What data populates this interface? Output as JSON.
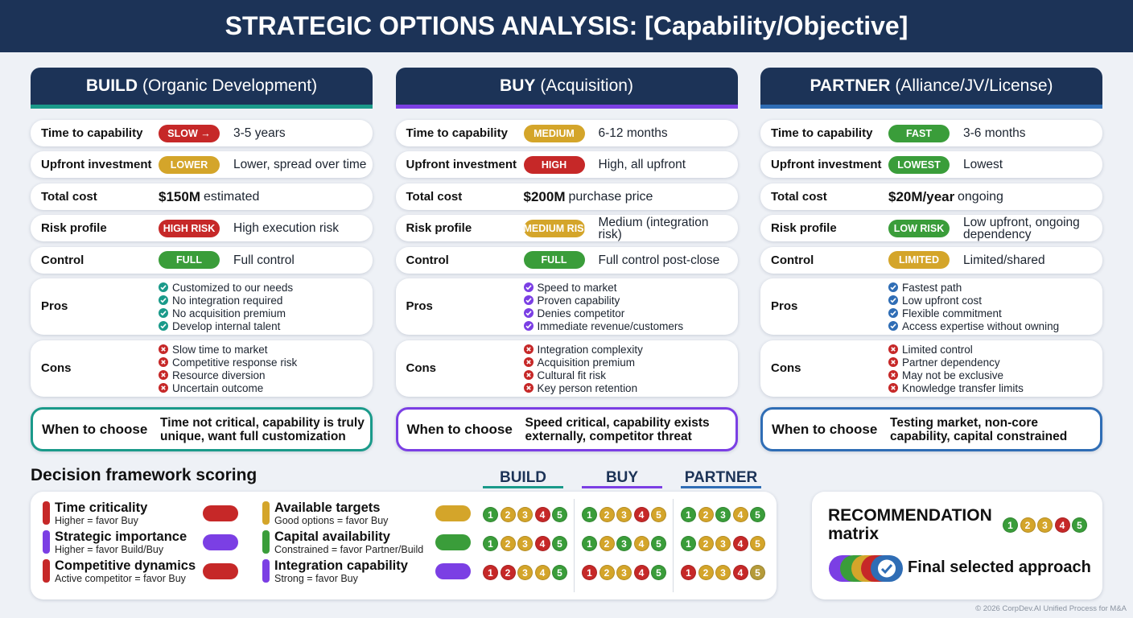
{
  "title": "STRATEGIC OPTIONS ANALYSIS: [Capability/Objective]",
  "options": [
    {
      "name": "BUILD",
      "subtitle": "(Organic Development)",
      "color": "teal",
      "rows": [
        {
          "label": "Time to capability",
          "badge": "SLOW →",
          "badge_color": "red",
          "text": "3-5 years"
        },
        {
          "label": "Upfront investment",
          "badge": "LOWER",
          "badge_color": "yellow",
          "text": "Lower, spread over time"
        },
        {
          "label": "Total cost",
          "amount": "$150M",
          "text": "estimated"
        },
        {
          "label": "Risk profile",
          "badge": "HIGH RISK",
          "badge_color": "red",
          "text": "High execution risk"
        },
        {
          "label": "Control",
          "badge": "FULL",
          "badge_color": "green",
          "text": "Full control"
        }
      ],
      "pros_label": "Pros",
      "pros": [
        "Customized to our needs",
        "No integration required",
        "No acquisition premium",
        "Develop internal talent"
      ],
      "cons_label": "Cons",
      "cons": [
        "Slow time to market",
        "Competitive response risk",
        "Resource diversion",
        "Uncertain outcome"
      ],
      "when_label": "When to choose",
      "when": "Time not critical, capability is truly unique, want full customization"
    },
    {
      "name": "BUY",
      "subtitle": "(Acquisition)",
      "color": "purple",
      "rows": [
        {
          "label": "Time to capability",
          "badge": "MEDIUM",
          "badge_color": "yellow",
          "text": "6-12 months"
        },
        {
          "label": "Upfront investment",
          "badge": "HIGH",
          "badge_color": "red",
          "text": "High, all upfront"
        },
        {
          "label": "Total cost",
          "amount": "$200M",
          "text": "purchase price"
        },
        {
          "label": "Risk profile",
          "badge": "MEDIUM RISK",
          "badge_color": "yellow",
          "text": "Medium (integration risk)"
        },
        {
          "label": "Control",
          "badge": "FULL",
          "badge_color": "green",
          "text": "Full control post-close"
        }
      ],
      "pros_label": "Pros",
      "pros": [
        "Speed to market",
        "Proven capability",
        "Denies competitor",
        "Immediate revenue/customers"
      ],
      "cons_label": "Cons",
      "cons": [
        "Integration complexity",
        "Acquisition premium",
        "Cultural fit risk",
        "Key person retention"
      ],
      "when_label": "When to choose",
      "when": "Speed critical, capability exists externally, competitor threat"
    },
    {
      "name": "PARTNER",
      "subtitle": "(Alliance/JV/License)",
      "color": "blue",
      "rows": [
        {
          "label": "Time to capability",
          "badge": "FAST",
          "badge_color": "green",
          "text": "3-6 months"
        },
        {
          "label": "Upfront investment",
          "badge": "LOWEST",
          "badge_color": "green",
          "text": "Lowest"
        },
        {
          "label": "Total cost",
          "amount": "$20M/year",
          "text": "ongoing"
        },
        {
          "label": "Risk profile",
          "badge": "LOW RISK",
          "badge_color": "green",
          "text": "Low upfront, ongoing dependency"
        },
        {
          "label": "Control",
          "badge": "LIMITED",
          "badge_color": "yellow",
          "text": "Limited/shared"
        }
      ],
      "pros_label": "Pros",
      "pros": [
        "Fastest path",
        "Low upfront cost",
        "Flexible commitment",
        "Access expertise without owning"
      ],
      "cons_label": "Cons",
      "cons": [
        "Limited control",
        "Partner dependency",
        "May not be exclusive",
        "Knowledge transfer limits"
      ],
      "when_label": "When to choose",
      "when": "Testing market, non-core capability, capital constrained"
    }
  ],
  "scoring": {
    "title": "Decision framework scoring",
    "columns": [
      {
        "name": "BUILD",
        "color": "teal"
      },
      {
        "name": "BUY",
        "color": "purple"
      },
      {
        "name": "PARTNER",
        "color": "blue"
      }
    ],
    "criteria": [
      {
        "name": "Time criticality",
        "note": "Higher = favor Buy",
        "color": "red"
      },
      {
        "name": "Strategic importance",
        "note": "Higher = favor Build/Buy",
        "color": "purple"
      },
      {
        "name": "Competitive dynamics",
        "note": "Active competitor = favor Buy",
        "color": "red"
      },
      {
        "name": "Available targets",
        "note": "Good options = favor Buy",
        "color": "yellow"
      },
      {
        "name": "Capital availability",
        "note": "Constrained = favor Partner/Build",
        "color": "green"
      },
      {
        "name": "Integration capability",
        "note": "Strong = favor Buy",
        "color": "purple"
      }
    ],
    "scale": [
      1,
      2,
      3,
      4,
      5
    ],
    "grid": [
      [
        [
          "green",
          "yellow",
          "yellow",
          "red",
          "green"
        ],
        [
          "green",
          "yellow",
          "yellow",
          "red",
          "yellow"
        ],
        [
          "green",
          "yellow",
          "green",
          "yellow",
          "green"
        ]
      ],
      [
        [
          "green",
          "yellow",
          "yellow",
          "red",
          "green"
        ],
        [
          "green",
          "yellow",
          "green",
          "yellow",
          "green"
        ],
        [
          "green",
          "yellow",
          "yellow",
          "red",
          "yellow"
        ]
      ],
      [
        [
          "red",
          "red",
          "yellow",
          "yellow",
          "green"
        ],
        [
          "red",
          "yellow",
          "yellow",
          "red",
          "green"
        ],
        [
          "red",
          "yellow",
          "yellow",
          "red",
          "olive"
        ]
      ]
    ]
  },
  "recommendation": {
    "title": "RECOMMENDATION",
    "subtitle": "matrix",
    "scale_colors": [
      "green",
      "yellow",
      "yellow",
      "red",
      "green"
    ],
    "label": "Final selected approach"
  },
  "footer": "© 2026 CorpDev.AI Unified Process for M&A"
}
